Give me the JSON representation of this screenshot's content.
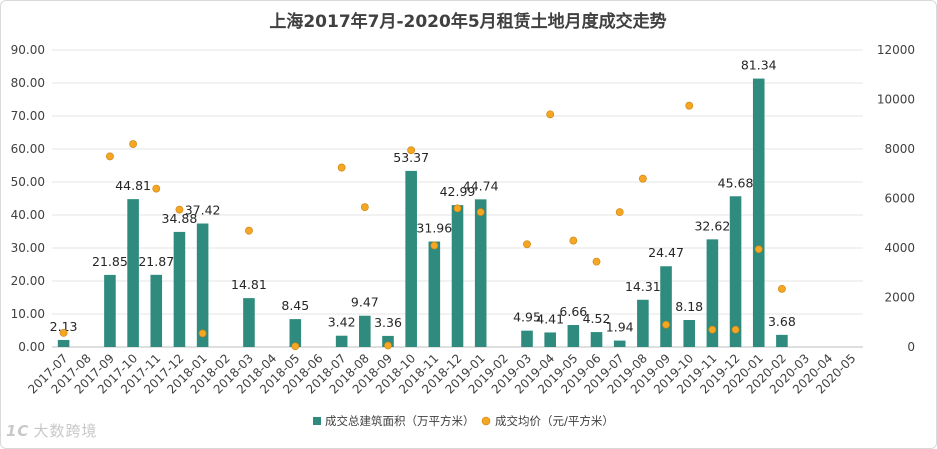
{
  "chart_data": {
    "type": "bar",
    "title": "上海2017年7月-2020年5月租赁土地月度成交走势",
    "categories": [
      "2017-07",
      "2017-08",
      "2017-09",
      "2017-10",
      "2017-11",
      "2017-12",
      "2018-01",
      "2018-02",
      "2018-03",
      "2018-04",
      "2018-05",
      "2018-06",
      "2018-07",
      "2018-08",
      "2018-09",
      "2018-10",
      "2018-11",
      "2018-12",
      "2019-01",
      "2019-02",
      "2019-03",
      "2019-04",
      "2019-05",
      "2019-06",
      "2019-07",
      "2019-08",
      "2019-09",
      "2019-10",
      "2019-11",
      "2019-12",
      "2020-01",
      "2020-02",
      "2020-03",
      "2020-04",
      "2020-05"
    ],
    "series": [
      {
        "name": "成交总建筑面积（万平方米）",
        "type": "bar",
        "axis": "left",
        "color": "#2e8b7e",
        "values": [
          2.13,
          null,
          21.85,
          44.81,
          21.87,
          34.88,
          37.42,
          null,
          14.81,
          null,
          8.45,
          null,
          3.42,
          9.47,
          3.36,
          53.37,
          31.96,
          42.99,
          44.74,
          null,
          4.95,
          4.41,
          6.66,
          4.52,
          1.94,
          14.31,
          24.47,
          8.18,
          32.62,
          45.68,
          81.34,
          3.68,
          null,
          null,
          null
        ],
        "labels": [
          "2.13",
          "",
          "21.85",
          "44.81",
          "21.87",
          "34.88",
          "37.42",
          "",
          "14.81",
          "",
          "8.45",
          "",
          "3.42",
          "9.47",
          "3.36",
          "53.37",
          "31.96",
          "42.99",
          "44.74",
          "",
          "4.95",
          "4.41",
          "6.66",
          "4.52",
          "1.94",
          "14.31",
          "24.47",
          "8.18",
          "32.62",
          "45.68",
          "81.34",
          "3.68",
          "",
          "",
          ""
        ]
      },
      {
        "name": "成交均价（元/平方米）",
        "type": "scatter",
        "axis": "right",
        "color": "#f5a623",
        "values": [
          570,
          null,
          7700,
          8200,
          6400,
          5550,
          550,
          null,
          4700,
          null,
          30,
          null,
          7250,
          5650,
          60,
          7950,
          4100,
          5600,
          5450,
          null,
          4150,
          9400,
          4300,
          3450,
          5450,
          6800,
          900,
          9750,
          700,
          700,
          3950,
          2350,
          null,
          null,
          null
        ]
      }
    ],
    "y_left": {
      "ylim": [
        0,
        90
      ],
      "ticks": [
        "0.00",
        "10.00",
        "20.00",
        "30.00",
        "40.00",
        "50.00",
        "60.00",
        "70.00",
        "80.00",
        "90.00"
      ]
    },
    "y_right": {
      "ylim": [
        0,
        12000
      ],
      "ticks": [
        "0",
        "2000",
        "4000",
        "6000",
        "8000",
        "10000",
        "12000"
      ]
    },
    "legend": "bottom"
  },
  "watermark": {
    "logo": "1C",
    "text": "大数跨境"
  }
}
